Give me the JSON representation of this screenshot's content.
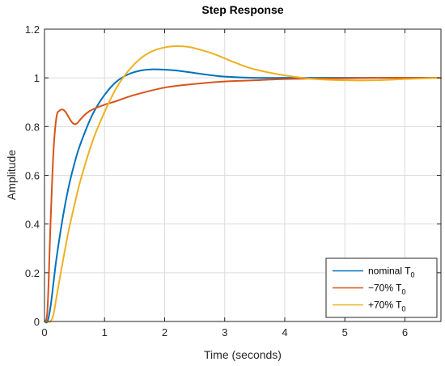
{
  "chart_data": {
    "type": "line",
    "title": "Step Response",
    "xlabel": "Time (seconds)",
    "ylabel": "Amplitude",
    "xlim": [
      0,
      6.6
    ],
    "ylim": [
      0,
      1.2
    ],
    "grid": true,
    "legend_position": "bottom-right",
    "x_ticks": [
      {
        "value": 0,
        "label": "0"
      },
      {
        "value": 1,
        "label": "1"
      },
      {
        "value": 2,
        "label": "2"
      },
      {
        "value": 3,
        "label": "3"
      },
      {
        "value": 4,
        "label": "4"
      },
      {
        "value": 5,
        "label": "5"
      },
      {
        "value": 6,
        "label": "6"
      }
    ],
    "y_ticks": [
      {
        "value": 0,
        "label": "0"
      },
      {
        "value": 0.2,
        "label": "0.2"
      },
      {
        "value": 0.4,
        "label": "0.4"
      },
      {
        "value": 0.6,
        "label": "0.6"
      },
      {
        "value": 0.8,
        "label": "0.8"
      },
      {
        "value": 1,
        "label": "1"
      },
      {
        "value": 1.2,
        "label": "1.2"
      }
    ],
    "series": [
      {
        "name": "nominal T",
        "subscript": "0",
        "color": "#0072BD",
        "x": [
          0,
          0.05,
          0.1,
          0.15,
          0.2,
          0.3,
          0.4,
          0.5,
          0.6,
          0.8,
          1.0,
          1.2,
          1.4,
          1.6,
          1.8,
          2.0,
          2.2,
          2.5,
          2.8,
          3.0,
          3.5,
          4.0,
          4.5,
          5.0,
          5.5,
          6.0,
          6.6
        ],
        "y": [
          0,
          0.0,
          0.06,
          0.16,
          0.26,
          0.42,
          0.55,
          0.65,
          0.73,
          0.85,
          0.93,
          0.985,
          1.015,
          1.03,
          1.035,
          1.034,
          1.03,
          1.02,
          1.01,
          1.005,
          1.0,
          1.0,
          1.0,
          1.0,
          1.0,
          1.0,
          1.0
        ]
      },
      {
        "name": "−70% T",
        "subscript": "0",
        "color": "#D95319",
        "x": [
          0,
          0.05,
          0.1,
          0.15,
          0.2,
          0.25,
          0.3,
          0.35,
          0.4,
          0.45,
          0.5,
          0.55,
          0.6,
          0.7,
          0.8,
          1.0,
          1.2,
          1.5,
          2.0,
          2.5,
          3.0,
          3.5,
          4.0,
          4.5,
          5.0,
          5.5,
          6.0,
          6.6
        ],
        "y": [
          0,
          0.05,
          0.4,
          0.7,
          0.84,
          0.865,
          0.87,
          0.86,
          0.84,
          0.82,
          0.81,
          0.815,
          0.83,
          0.855,
          0.87,
          0.89,
          0.905,
          0.93,
          0.96,
          0.975,
          0.985,
          0.99,
          0.995,
          0.997,
          0.998,
          1.0,
          1.0,
          1.0
        ]
      },
      {
        "name": "+70% T",
        "subscript": "0",
        "color": "#EDB120",
        "x": [
          0,
          0.05,
          0.1,
          0.15,
          0.2,
          0.3,
          0.4,
          0.5,
          0.6,
          0.8,
          1.0,
          1.2,
          1.4,
          1.6,
          1.8,
          2.0,
          2.2,
          2.4,
          2.6,
          2.8,
          3.0,
          3.2,
          3.5,
          4.0,
          4.5,
          5.0,
          5.5,
          6.0,
          6.6
        ],
        "y": [
          0,
          0.0,
          0.0,
          0.03,
          0.1,
          0.24,
          0.37,
          0.48,
          0.58,
          0.74,
          0.86,
          0.96,
          1.03,
          1.08,
          1.11,
          1.125,
          1.13,
          1.127,
          1.115,
          1.1,
          1.08,
          1.06,
          1.035,
          1.01,
          0.995,
          0.99,
          0.99,
          0.995,
          1.0
        ]
      }
    ]
  }
}
